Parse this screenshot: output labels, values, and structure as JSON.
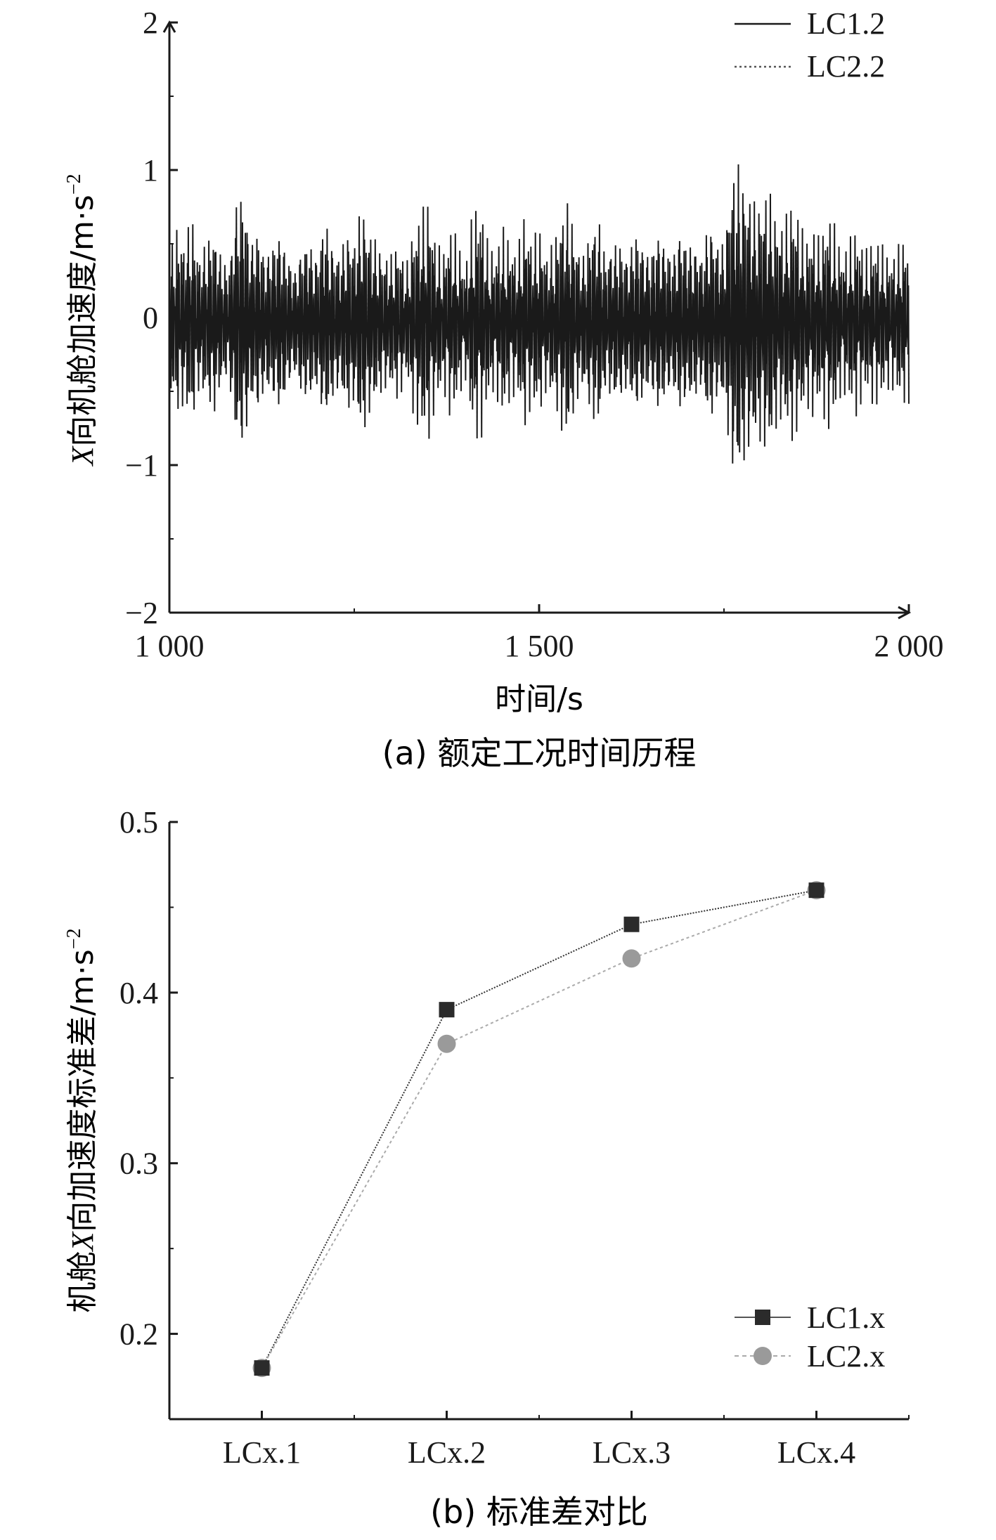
{
  "chart_data": [
    {
      "type": "line",
      "panel_caption": "(a) 额定工况时间历程",
      "xlabel": "时间/s",
      "ylabel_prefix": "X",
      "ylabel_text": "向机舱加速度/m·s",
      "ylabel_sup": "−2",
      "xlim": [
        1000,
        2000
      ],
      "ylim": [
        -2,
        2
      ],
      "xtick_labels": [
        "1 000",
        "1 500",
        "2 000"
      ],
      "xtick_values": [
        1000,
        1500,
        2000
      ],
      "ytick_labels": [
        "2",
        "1",
        "0",
        "−1",
        "−2"
      ],
      "ytick_values": [
        2,
        1,
        0,
        -1,
        -2
      ],
      "legend_position": "top-right",
      "series": [
        {
          "name": "LC1.2",
          "style": "solid",
          "color": "#1a1a1a",
          "note_amplitude_std": 0.44,
          "x": [
            1000,
            1010,
            1020,
            1030,
            1040,
            1050,
            1060,
            1070,
            1080,
            1090,
            1100,
            1110,
            1120,
            1130,
            1140,
            1150,
            1160,
            1170,
            1180,
            1190,
            1200,
            1210,
            1220,
            1230,
            1240,
            1250,
            1260,
            1270,
            1280,
            1290,
            1300,
            1310,
            1320,
            1330,
            1340,
            1350,
            1360,
            1370,
            1380,
            1390,
            1400,
            1410,
            1420,
            1430,
            1440,
            1450,
            1460,
            1470,
            1480,
            1490,
            1500,
            1510,
            1520,
            1530,
            1540,
            1550,
            1560,
            1570,
            1580,
            1590,
            1600,
            1610,
            1620,
            1630,
            1640,
            1650,
            1660,
            1670,
            1680,
            1690,
            1700,
            1710,
            1720,
            1730,
            1740,
            1750,
            1760,
            1770,
            1780,
            1790,
            1800,
            1810,
            1820,
            1830,
            1840,
            1850,
            1860,
            1870,
            1880,
            1890,
            1900,
            1910,
            1920,
            1930,
            1940,
            1950,
            1960,
            1970,
            1980,
            1990,
            2000
          ],
          "y": [
            0.5,
            -0.7,
            0.6,
            -0.8,
            0.5,
            -0.6,
            0.7,
            -0.5,
            0.4,
            -0.9,
            1.0,
            -0.6,
            0.7,
            -0.5,
            0.6,
            -0.7,
            0.5,
            -0.4,
            0.6,
            -0.6,
            0.5,
            -0.8,
            0.6,
            -0.5,
            0.7,
            -0.6,
            0.9,
            -0.7,
            0.6,
            -0.5,
            0.5,
            -0.6,
            0.4,
            -0.7,
            0.8,
            -0.9,
            0.6,
            -0.5,
            0.7,
            -0.6,
            0.4,
            -0.8,
            0.9,
            -0.6,
            0.5,
            -0.7,
            0.6,
            -0.5,
            0.8,
            -0.6,
            0.7,
            -0.5,
            0.6,
            -0.8,
            0.9,
            -0.6,
            0.5,
            -0.7,
            0.8,
            -0.5,
            0.6,
            -0.6,
            0.5,
            -0.7,
            0.6,
            -0.5,
            0.7,
            -0.6,
            0.5,
            -0.7,
            0.6,
            -0.6,
            0.5,
            -0.8,
            0.6,
            -0.6,
            1.1,
            -1.2,
            1.0,
            -0.9,
            0.9,
            -1.0,
            0.8,
            -0.7,
            0.9,
            -0.8,
            0.6,
            -0.7,
            0.6,
            -0.8,
            0.7,
            -0.5,
            0.6,
            -0.7,
            0.5,
            -0.6,
            0.6,
            -0.5,
            0.5,
            -0.6,
            0.6
          ]
        },
        {
          "name": "LC2.2",
          "style": "dotted",
          "color": "#555555",
          "x": [
            1000,
            1010,
            1020,
            1030,
            1040,
            1050,
            1060,
            1070,
            1080,
            1090,
            1100,
            1110,
            1120,
            1130,
            1140,
            1150,
            1160,
            1170,
            1180,
            1190,
            1200,
            1210,
            1220,
            1230,
            1240,
            1250,
            1260,
            1270,
            1280,
            1290,
            1300,
            1310,
            1320,
            1330,
            1340,
            1350,
            1360,
            1370,
            1380,
            1390,
            1400,
            1410,
            1420,
            1430,
            1440,
            1450,
            1460,
            1470,
            1480,
            1490,
            1500,
            1510,
            1520,
            1530,
            1540,
            1550,
            1560,
            1570,
            1580,
            1590,
            1600,
            1610,
            1620,
            1630,
            1640,
            1650,
            1660,
            1670,
            1680,
            1690,
            1700,
            1710,
            1720,
            1730,
            1740,
            1750,
            1760,
            1770,
            1780,
            1790,
            1800,
            1810,
            1820,
            1830,
            1840,
            1850,
            1860,
            1870,
            1880,
            1890,
            1900,
            1910,
            1920,
            1930,
            1940,
            1950,
            1960,
            1970,
            1980,
            1990,
            2000
          ],
          "y": [
            0.4,
            -0.6,
            0.5,
            -0.7,
            0.4,
            -0.5,
            0.6,
            -0.4,
            0.3,
            -0.8,
            0.9,
            -0.5,
            0.6,
            -0.4,
            0.5,
            -0.6,
            0.4,
            -0.3,
            0.5,
            -0.5,
            0.4,
            -0.7,
            0.5,
            -0.4,
            0.6,
            -0.5,
            0.8,
            -0.6,
            0.5,
            -0.4,
            0.4,
            -0.5,
            0.3,
            -0.6,
            0.7,
            -0.8,
            0.5,
            -0.4,
            0.6,
            -0.5,
            0.3,
            -0.7,
            0.8,
            -0.5,
            0.4,
            -0.6,
            0.5,
            -0.4,
            0.7,
            -0.5,
            0.6,
            -0.4,
            0.5,
            -0.7,
            0.8,
            -0.5,
            0.4,
            -0.6,
            0.7,
            -0.4,
            0.5,
            -0.5,
            0.4,
            -0.6,
            0.5,
            -0.4,
            0.6,
            -0.5,
            0.4,
            -0.6,
            0.5,
            -0.5,
            0.4,
            -0.7,
            0.5,
            -0.5,
            1.0,
            -1.1,
            0.9,
            -0.8,
            0.8,
            -0.9,
            0.7,
            -0.6,
            0.8,
            -0.7,
            0.5,
            -0.6,
            0.5,
            -0.7,
            0.6,
            -0.4,
            0.5,
            -0.6,
            0.4,
            -0.5,
            0.5,
            -0.4,
            0.4,
            -0.5,
            0.5
          ]
        }
      ]
    },
    {
      "type": "line",
      "panel_caption": "(b) 标准差对比",
      "xlabel": "",
      "ylabel_prefix_text": "机舱",
      "ylabel_italic": "X",
      "ylabel_text": "向加速度标准差/m·s",
      "ylabel_sup": "−2",
      "categories": [
        "LCx.1",
        "LCx.2",
        "LCx.3",
        "LCx.4"
      ],
      "ylim": [
        0.15,
        0.5
      ],
      "ytick_labels": [
        "0.5",
        "0.4",
        "0.3",
        "0.2"
      ],
      "ytick_values": [
        0.5,
        0.4,
        0.3,
        0.2
      ],
      "legend_position": "bottom-right",
      "series": [
        {
          "name": "LC1.x",
          "marker": "square",
          "color": "#2b2b2b",
          "values": [
            0.18,
            0.39,
            0.44,
            0.46
          ]
        },
        {
          "name": "LC2.x",
          "marker": "circle",
          "color": "#9a9a9a",
          "values": [
            0.18,
            0.37,
            0.42,
            0.46
          ]
        }
      ]
    }
  ]
}
